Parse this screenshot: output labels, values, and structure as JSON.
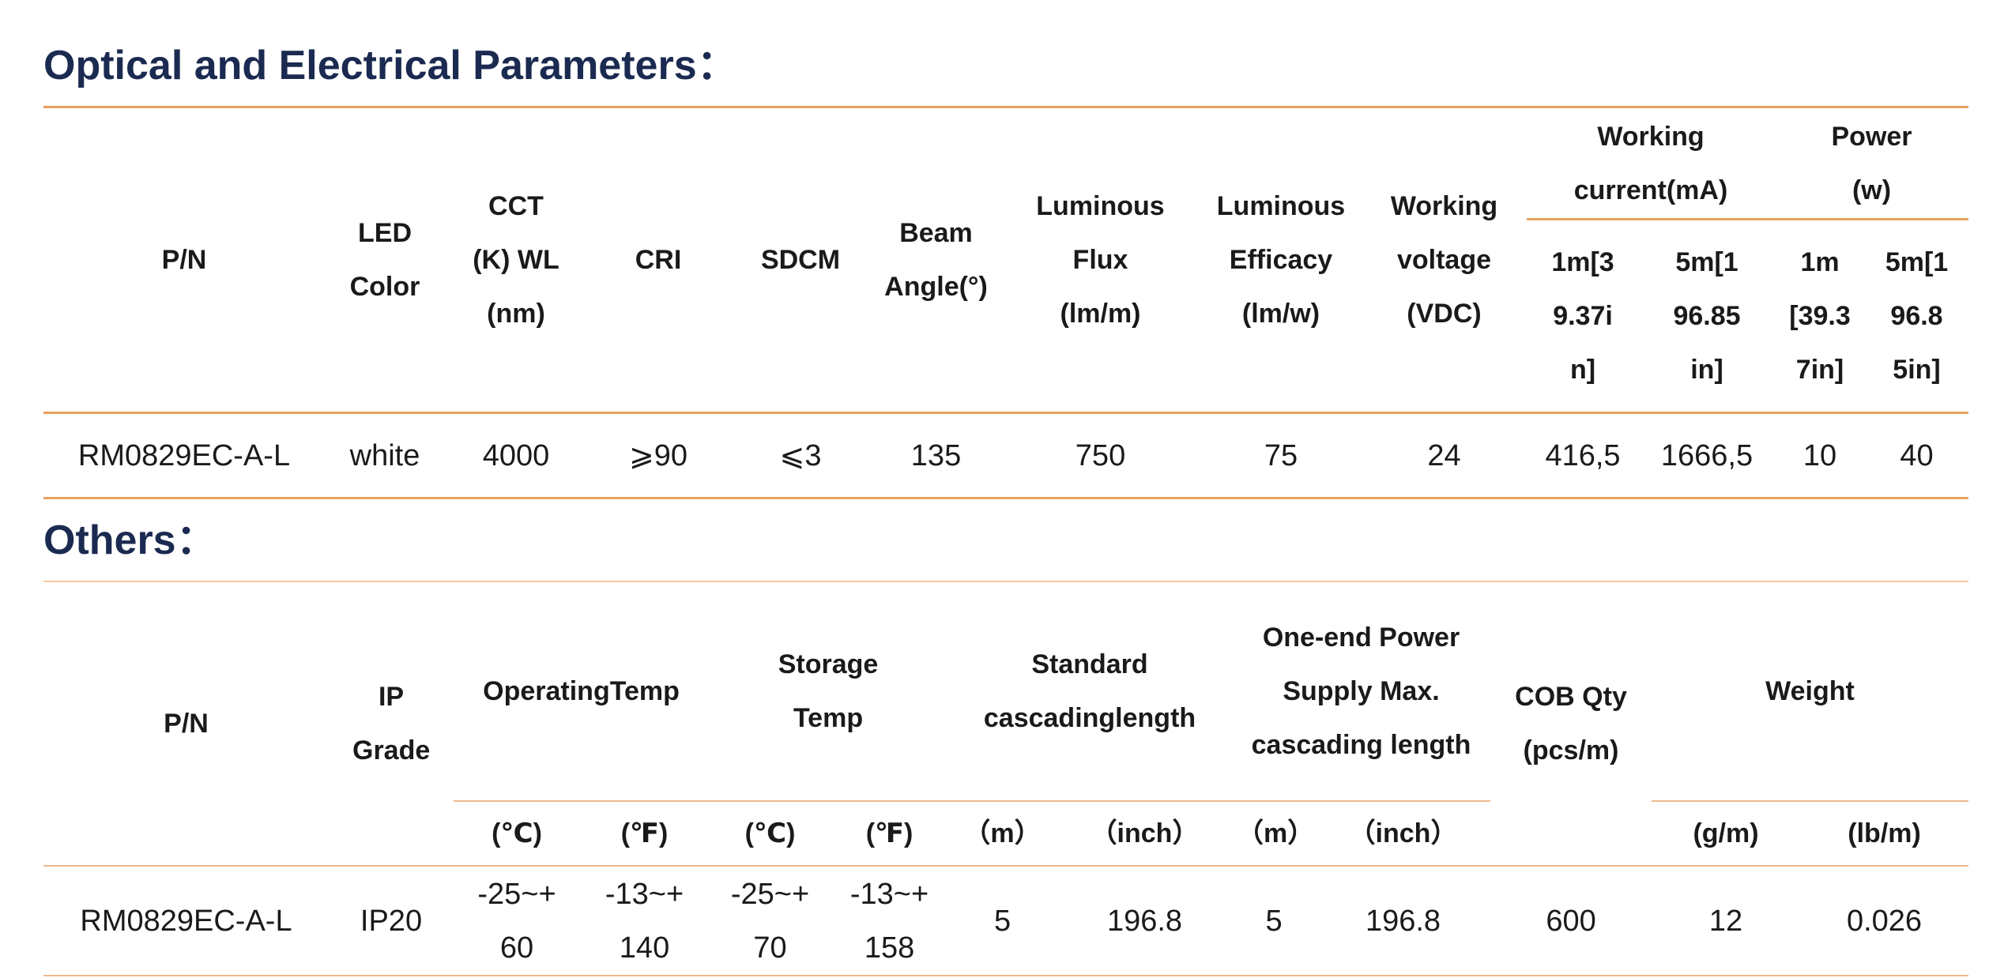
{
  "optical": {
    "title": "Optical and Electrical Parameters：",
    "headers": [
      "P/N",
      "LED Color",
      "CCT (K) WL (nm)",
      "CRI",
      "SDCM",
      "Beam Angle(°)",
      "Luminous Flux (lm/m)",
      "Luminous Efficacy (lm/w)",
      "Working voltage (VDC)",
      "Working current(mA)",
      "Power (w)",
      "1m[39.37in]",
      "5m[196.85in]",
      "1m[39.37in]",
      "5m[196.85in]"
    ],
    "rows": [
      [
        "RM0829EC-A-L",
        "white",
        "4000",
        "⩾90",
        "⩽3",
        "135",
        "750",
        "75",
        "24",
        "416,5",
        "1666,5",
        "10",
        "40"
      ]
    ]
  },
  "others": {
    "title": "Others：",
    "headers": [
      "P/N",
      "IP Grade",
      "OperatingTemp",
      "Storage Temp",
      "Standard cascadinglength",
      "One-end Power Supply Max. cascading length",
      "COB Qty (pcs/m)",
      "Weight",
      "(℃)",
      "(℉)",
      "(℃)",
      "(℉)",
      "（m）",
      "（inch）",
      "（m）",
      "（inch）",
      "(g/m)",
      "(lb/m)"
    ],
    "rows": [
      [
        "RM0829EC-A-L",
        "IP20",
        "-25~+60",
        "-13~+140",
        "-25~+70",
        "-13~+158",
        "5",
        "196.8",
        "5",
        "196.8",
        "600",
        "12",
        "0.026"
      ]
    ]
  }
}
